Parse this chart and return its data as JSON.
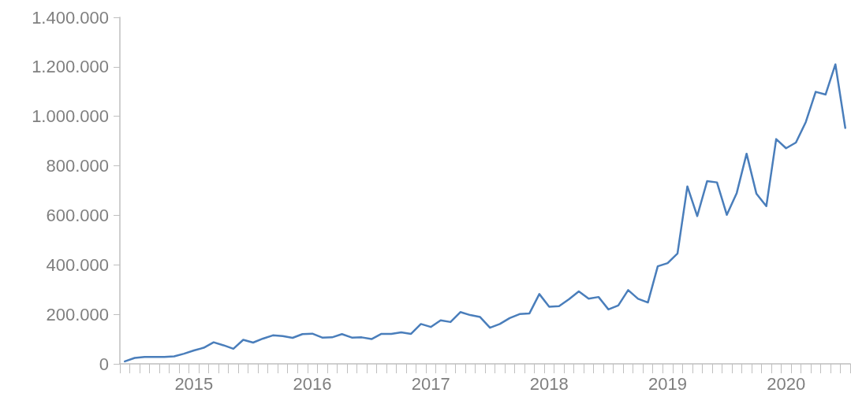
{
  "chart_data": {
    "type": "line",
    "categories": [
      null,
      null,
      null,
      null,
      null,
      null,
      null,
      "2015",
      null,
      null,
      null,
      null,
      null,
      null,
      null,
      null,
      null,
      null,
      null,
      "2016",
      null,
      null,
      null,
      null,
      null,
      null,
      null,
      null,
      null,
      null,
      null,
      "2017",
      null,
      null,
      null,
      null,
      null,
      null,
      null,
      null,
      null,
      null,
      null,
      "2018",
      null,
      null,
      null,
      null,
      null,
      null,
      null,
      null,
      null,
      null,
      null,
      "2019",
      null,
      null,
      null,
      null,
      null,
      null,
      null,
      null,
      null,
      null,
      null,
      "2020",
      null,
      null,
      null,
      null,
      null,
      null
    ],
    "series": [
      {
        "color": "#4a7ebb",
        "values": [
          10000,
          24000,
          28000,
          28000,
          28000,
          30000,
          41000,
          54000,
          65000,
          87000,
          75000,
          61000,
          97000,
          86000,
          102000,
          115000,
          112000,
          105000,
          120000,
          122000,
          106000,
          107000,
          120000,
          106000,
          107000,
          100000,
          121000,
          121000,
          127000,
          121000,
          161000,
          149000,
          176000,
          169000,
          209000,
          197000,
          189000,
          146000,
          161000,
          185000,
          201000,
          204000,
          282000,
          231000,
          233000,
          261000,
          293000,
          263000,
          270000,
          220000,
          236000,
          298000,
          263000,
          248000,
          394000,
          407000,
          446000,
          717000,
          597000,
          738000,
          733000,
          602000,
          690000,
          849000,
          687000,
          637000,
          908000,
          871000,
          894000,
          977000,
          1099000,
          1088000,
          1210000,
          953000
        ]
      }
    ],
    "ylim": [
      0,
      1400000
    ],
    "yticks": [
      {
        "value": 0,
        "label": "0"
      },
      {
        "value": 200000,
        "label": "200.000"
      },
      {
        "value": 400000,
        "label": "400.000"
      },
      {
        "value": 600000,
        "label": "600.000"
      },
      {
        "value": 800000,
        "label": "800.000"
      },
      {
        "value": 1000000,
        "label": "1.000.000"
      },
      {
        "value": 1200000,
        "label": "1.200.000"
      },
      {
        "value": 1400000,
        "label": "1.400.000"
      }
    ],
    "marker": "none",
    "line_style": "solid"
  }
}
